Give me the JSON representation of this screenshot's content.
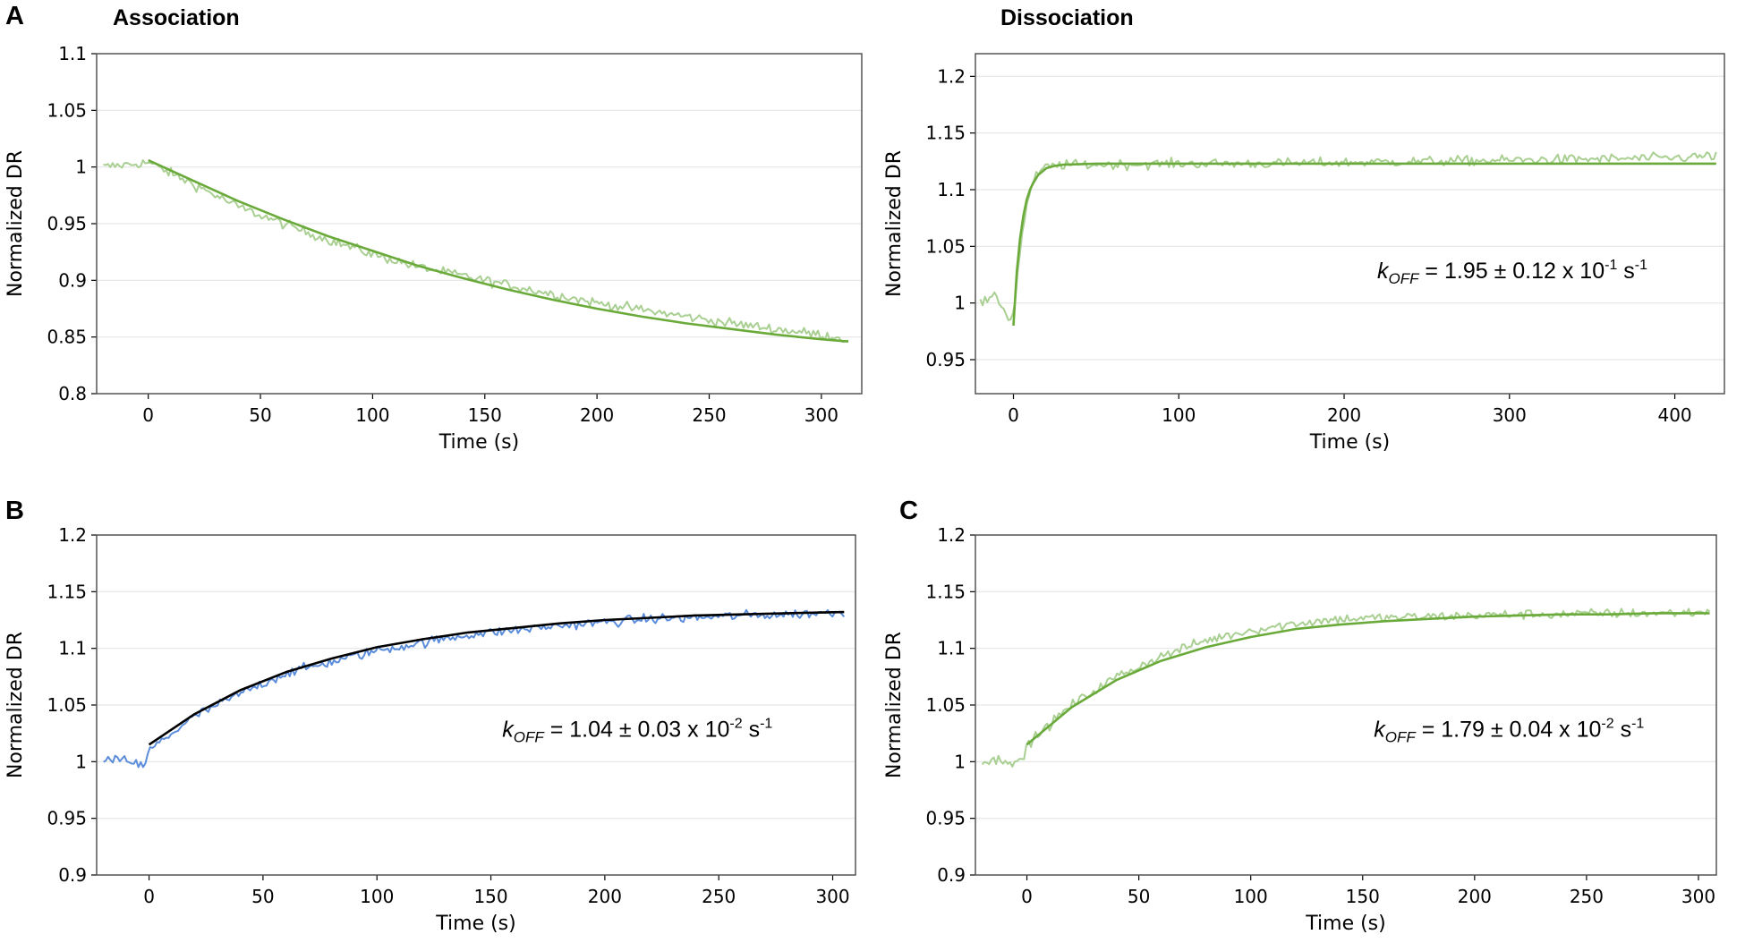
{
  "headings": {
    "association": "Association",
    "dissociation": "Dissociation"
  },
  "panel_letters": {
    "a": "A",
    "b": "B",
    "c": "C"
  },
  "colors": {
    "light_green": "#a9cf92",
    "fit_green": "#6aaa3a",
    "blue": "#5b8ddb",
    "fit_black": "#000000",
    "grid": "#e6e6e6",
    "frame": "#555555"
  },
  "chart_data": [
    {
      "id": "A-association",
      "type": "line",
      "panel": "A",
      "xlabel": "Time (s)",
      "ylabel": "Normalized DR",
      "xlim": [
        -23,
        318
      ],
      "ylim": [
        0.8,
        1.1
      ],
      "xticks": [
        0,
        50,
        100,
        150,
        200,
        250,
        300
      ],
      "yticks": [
        0.8,
        0.85,
        0.9,
        0.95,
        1,
        1.05,
        1.1
      ],
      "xtick_labels": [
        "0",
        "50",
        "100",
        "150",
        "200",
        "250",
        "300"
      ],
      "ytick_labels": [
        "0.8",
        "0.85",
        "0.9",
        "0.95",
        "1",
        "1.05",
        "1.1"
      ],
      "grid": "horizontal",
      "annotation": null,
      "series": [
        {
          "name": "raw",
          "color": "#a9cf92",
          "x": [
            -20,
            -10,
            0,
            20,
            40,
            60,
            80,
            100,
            120,
            140,
            160,
            180,
            200,
            220,
            240,
            260,
            280,
            300,
            312
          ],
          "y": [
            1.0,
            1.002,
            1.004,
            0.985,
            0.965,
            0.95,
            0.936,
            0.923,
            0.912,
            0.904,
            0.896,
            0.888,
            0.88,
            0.874,
            0.868,
            0.862,
            0.857,
            0.852,
            0.848
          ]
        },
        {
          "name": "fit",
          "color": "#6aaa3a",
          "x": [
            0,
            20,
            40,
            60,
            80,
            100,
            120,
            140,
            160,
            180,
            200,
            220,
            240,
            260,
            280,
            300,
            312
          ],
          "y": [
            1.006,
            0.988,
            0.97,
            0.954,
            0.939,
            0.926,
            0.913,
            0.902,
            0.892,
            0.883,
            0.875,
            0.868,
            0.862,
            0.857,
            0.852,
            0.848,
            0.846
          ]
        }
      ]
    },
    {
      "id": "A-dissociation",
      "type": "line",
      "panel": "A",
      "xlabel": "Time (s)",
      "ylabel": "Normalized DR",
      "xlim": [
        -23,
        430
      ],
      "ylim": [
        0.92,
        1.22
      ],
      "xticks": [
        0,
        100,
        200,
        300,
        400
      ],
      "yticks": [
        0.95,
        1,
        1.05,
        1.1,
        1.15,
        1.2
      ],
      "xtick_labels": [
        "0",
        "100",
        "200",
        "300",
        "400"
      ],
      "ytick_labels": [
        "0.95",
        "1",
        "1.05",
        "1.1",
        "1.15",
        "1.2"
      ],
      "grid": "horizontal",
      "annotation": {
        "k": "k",
        "sub": "OFF",
        "text": " = 1.95 ± 0.12 x 10",
        "exp": "-1",
        "unit": " s",
        "unit_exp": "-1",
        "x_value": 220,
        "y_value": 1.022
      },
      "series": [
        {
          "name": "raw",
          "color": "#a9cf92",
          "x": [
            -20,
            -10,
            -2,
            0,
            5,
            10,
            15,
            20,
            30,
            50,
            100,
            150,
            200,
            250,
            300,
            350,
            400,
            425
          ],
          "y": [
            1.0,
            1.005,
            0.985,
            0.99,
            1.06,
            1.1,
            1.115,
            1.12,
            1.122,
            1.122,
            1.123,
            1.123,
            1.124,
            1.125,
            1.126,
            1.127,
            1.128,
            1.13
          ]
        },
        {
          "name": "fit",
          "color": "#6aaa3a",
          "x": [
            0,
            2,
            4,
            6,
            8,
            10,
            12,
            15,
            20,
            25,
            30,
            50,
            100,
            200,
            300,
            425
          ],
          "y": [
            0.98,
            1.027,
            1.057,
            1.077,
            1.091,
            1.1,
            1.106,
            1.113,
            1.119,
            1.121,
            1.122,
            1.123,
            1.123,
            1.123,
            1.123,
            1.123
          ]
        }
      ]
    },
    {
      "id": "B-association",
      "type": "line",
      "panel": "B",
      "xlabel": "Time (s)",
      "ylabel": "Normalized DR",
      "xlim": [
        -23,
        310
      ],
      "ylim": [
        0.9,
        1.2
      ],
      "xticks": [
        0,
        50,
        100,
        150,
        200,
        250,
        300
      ],
      "yticks": [
        0.9,
        0.95,
        1,
        1.05,
        1.1,
        1.15,
        1.2
      ],
      "xtick_labels": [
        "0",
        "50",
        "100",
        "150",
        "200",
        "250",
        "300"
      ],
      "ytick_labels": [
        "0.9",
        "0.95",
        "1",
        "1.05",
        "1.1",
        "1.15",
        "1.2"
      ],
      "grid": "horizontal",
      "annotation": {
        "k": "k",
        "sub": "OFF",
        "text": " = 1.04 ± 0.03 x 10",
        "exp": "-2",
        "unit": " s",
        "unit_exp": "-1",
        "x_value": 155,
        "y_value": 1.022
      },
      "series": [
        {
          "name": "raw",
          "color": "#5b8ddb",
          "x": [
            -20,
            -10,
            -2,
            0,
            20,
            40,
            60,
            80,
            100,
            120,
            140,
            160,
            180,
            200,
            220,
            240,
            260,
            280,
            305
          ],
          "y": [
            1.0,
            1.002,
            0.995,
            1.01,
            1.04,
            1.06,
            1.078,
            1.088,
            1.098,
            1.105,
            1.112,
            1.116,
            1.12,
            1.123,
            1.126,
            1.127,
            1.129,
            1.13,
            1.132
          ]
        },
        {
          "name": "fit",
          "color": "#000000",
          "x": [
            0,
            20,
            40,
            60,
            80,
            100,
            120,
            140,
            160,
            180,
            200,
            220,
            240,
            260,
            280,
            305
          ],
          "y": [
            1.015,
            1.042,
            1.063,
            1.079,
            1.091,
            1.101,
            1.108,
            1.114,
            1.118,
            1.122,
            1.125,
            1.127,
            1.129,
            1.13,
            1.131,
            1.132
          ]
        }
      ]
    },
    {
      "id": "C-dissociation",
      "type": "line",
      "panel": "C",
      "xlabel": "Time (s)",
      "ylabel": "Normalized DR",
      "xlim": [
        -23,
        308
      ],
      "ylim": [
        0.9,
        1.2
      ],
      "xticks": [
        0,
        50,
        100,
        150,
        200,
        250,
        300
      ],
      "yticks": [
        0.9,
        0.95,
        1,
        1.05,
        1.1,
        1.15,
        1.2
      ],
      "xtick_labels": [
        "0",
        "50",
        "100",
        "150",
        "200",
        "250",
        "300"
      ],
      "ytick_labels": [
        "0.9",
        "0.95",
        "1",
        "1.05",
        "1.1",
        "1.15",
        "1.2"
      ],
      "grid": "horizontal",
      "annotation": {
        "k": "k",
        "sub": "OFF",
        "text": " = 1.79 ± 0.04 x 10",
        "exp": "-2",
        "unit": " s",
        "unit_exp": "-1",
        "x_value": 155,
        "y_value": 1.022
      },
      "series": [
        {
          "name": "raw",
          "color": "#a9cf92",
          "x": [
            -20,
            -10,
            -2,
            0,
            20,
            40,
            60,
            80,
            100,
            120,
            140,
            160,
            180,
            200,
            220,
            240,
            260,
            280,
            305
          ],
          "y": [
            1.0,
            1.002,
            0.999,
            1.015,
            1.05,
            1.075,
            1.093,
            1.107,
            1.116,
            1.122,
            1.126,
            1.127,
            1.128,
            1.129,
            1.13,
            1.13,
            1.131,
            1.131,
            1.132
          ]
        },
        {
          "name": "fit",
          "color": "#6aaa3a",
          "x": [
            0,
            20,
            40,
            60,
            80,
            100,
            120,
            140,
            160,
            180,
            200,
            220,
            240,
            260,
            280,
            305
          ],
          "y": [
            1.015,
            1.048,
            1.072,
            1.089,
            1.101,
            1.11,
            1.117,
            1.121,
            1.124,
            1.126,
            1.128,
            1.129,
            1.13,
            1.13,
            1.131,
            1.131
          ]
        }
      ]
    }
  ]
}
